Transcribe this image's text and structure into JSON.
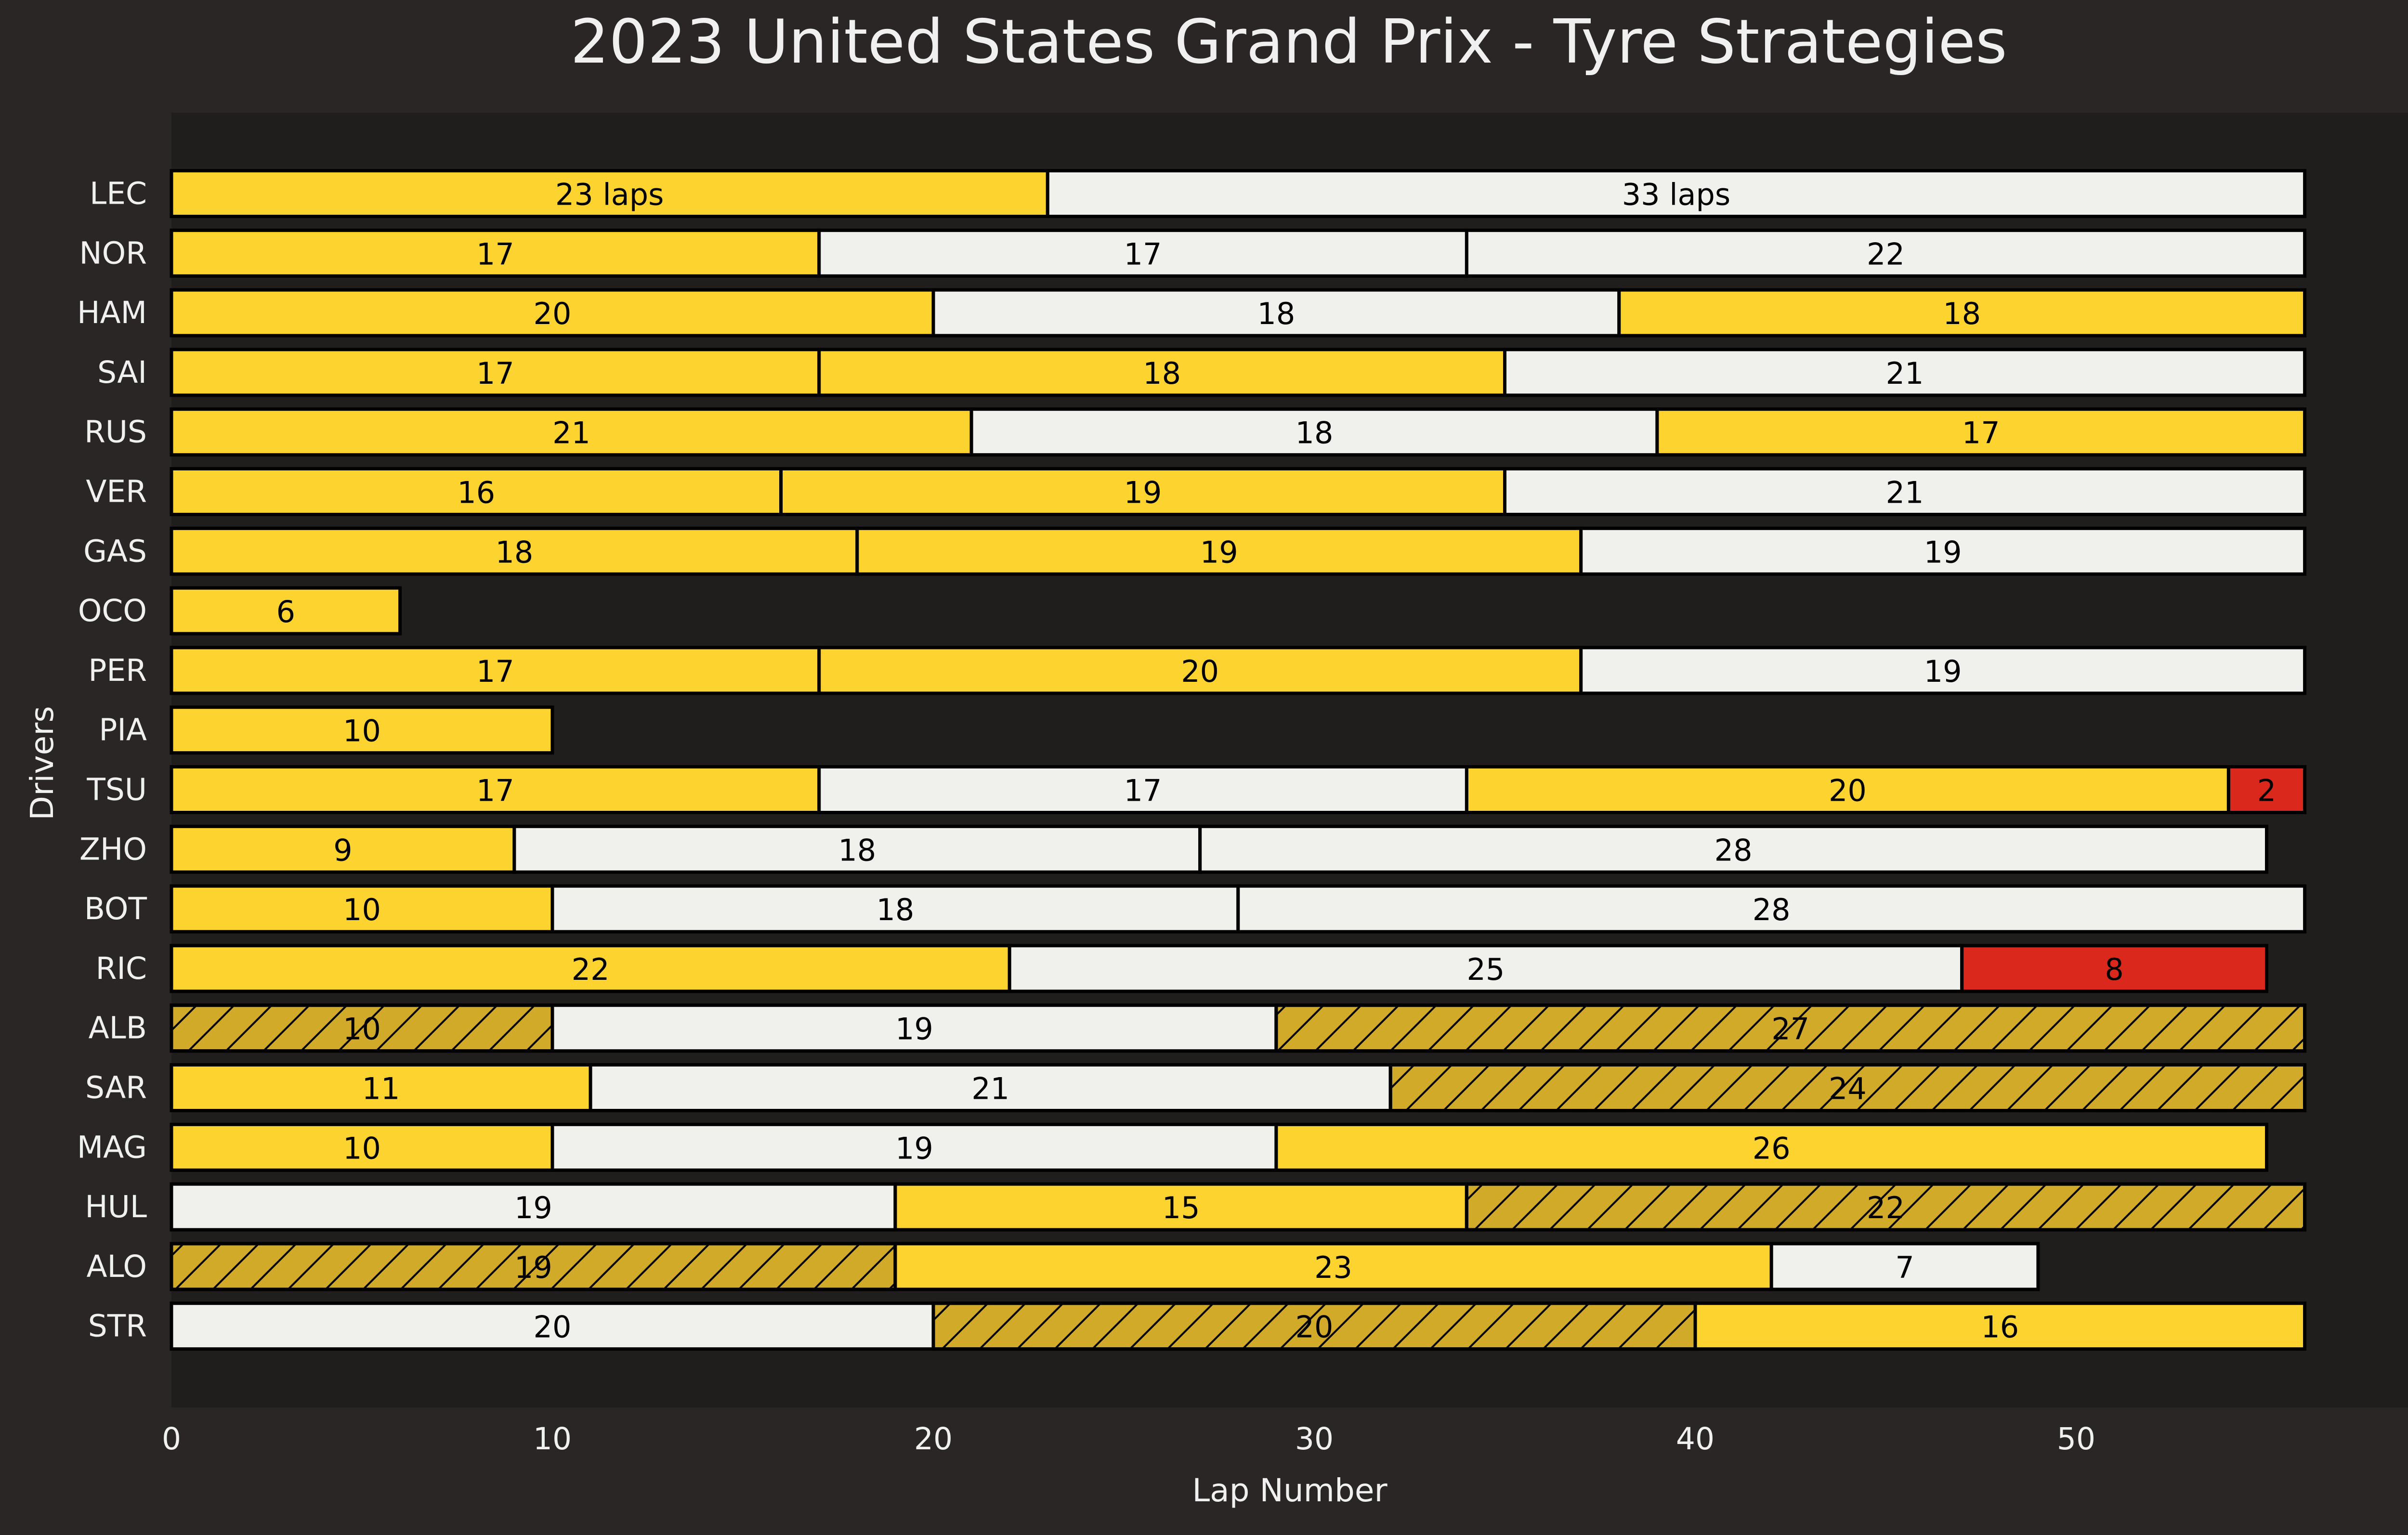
{
  "chart_data": {
    "type": "bar",
    "orientation": "horizontal-stacked",
    "title": "2023 United States Grand Prix - Tyre Strategies",
    "xlabel": "Lap Number",
    "ylabel": "Drivers",
    "xlim": [
      0,
      59
    ],
    "xticks": [
      0,
      10,
      20,
      30,
      40,
      50
    ],
    "grid": false,
    "legend": "none",
    "compound_colors": {
      "MEDIUM": "#FDD330",
      "HARD": "#F0F0EC",
      "SOFT": "#DA291C",
      "MEDIUM_USED": "#D1AA2A"
    },
    "colors": {
      "figure_bg": "#292625",
      "plot_bg": "#201E1D",
      "text": "#F0F0F0",
      "bar_edge": "#000000"
    },
    "drivers": [
      {
        "driver": "LEC",
        "stints": [
          {
            "laps": 23,
            "compound": "MEDIUM",
            "label": "23 laps"
          },
          {
            "laps": 33,
            "compound": "HARD",
            "label": "33 laps"
          }
        ]
      },
      {
        "driver": "NOR",
        "stints": [
          {
            "laps": 17,
            "compound": "MEDIUM",
            "label": "17"
          },
          {
            "laps": 17,
            "compound": "HARD",
            "label": "17"
          },
          {
            "laps": 22,
            "compound": "HARD",
            "label": "22"
          }
        ]
      },
      {
        "driver": "HAM",
        "stints": [
          {
            "laps": 20,
            "compound": "MEDIUM",
            "label": "20"
          },
          {
            "laps": 18,
            "compound": "HARD",
            "label": "18"
          },
          {
            "laps": 18,
            "compound": "MEDIUM",
            "label": "18"
          }
        ]
      },
      {
        "driver": "SAI",
        "stints": [
          {
            "laps": 17,
            "compound": "MEDIUM",
            "label": "17"
          },
          {
            "laps": 18,
            "compound": "MEDIUM",
            "label": "18"
          },
          {
            "laps": 21,
            "compound": "HARD",
            "label": "21"
          }
        ]
      },
      {
        "driver": "RUS",
        "stints": [
          {
            "laps": 21,
            "compound": "MEDIUM",
            "label": "21"
          },
          {
            "laps": 18,
            "compound": "HARD",
            "label": "18"
          },
          {
            "laps": 17,
            "compound": "MEDIUM",
            "label": "17"
          }
        ]
      },
      {
        "driver": "VER",
        "stints": [
          {
            "laps": 16,
            "compound": "MEDIUM",
            "label": "16"
          },
          {
            "laps": 19,
            "compound": "MEDIUM",
            "label": "19"
          },
          {
            "laps": 21,
            "compound": "HARD",
            "label": "21"
          }
        ]
      },
      {
        "driver": "GAS",
        "stints": [
          {
            "laps": 18,
            "compound": "MEDIUM",
            "label": "18"
          },
          {
            "laps": 19,
            "compound": "MEDIUM",
            "label": "19"
          },
          {
            "laps": 19,
            "compound": "HARD",
            "label": "19"
          }
        ]
      },
      {
        "driver": "OCO",
        "stints": [
          {
            "laps": 6,
            "compound": "MEDIUM",
            "label": "6"
          }
        ]
      },
      {
        "driver": "PER",
        "stints": [
          {
            "laps": 17,
            "compound": "MEDIUM",
            "label": "17"
          },
          {
            "laps": 20,
            "compound": "MEDIUM",
            "label": "20"
          },
          {
            "laps": 19,
            "compound": "HARD",
            "label": "19"
          }
        ]
      },
      {
        "driver": "PIA",
        "stints": [
          {
            "laps": 10,
            "compound": "MEDIUM",
            "label": "10"
          }
        ]
      },
      {
        "driver": "TSU",
        "stints": [
          {
            "laps": 17,
            "compound": "MEDIUM",
            "label": "17"
          },
          {
            "laps": 17,
            "compound": "HARD",
            "label": "17"
          },
          {
            "laps": 20,
            "compound": "MEDIUM",
            "label": "20"
          },
          {
            "laps": 2,
            "compound": "SOFT",
            "label": "2"
          }
        ]
      },
      {
        "driver": "ZHO",
        "stints": [
          {
            "laps": 9,
            "compound": "MEDIUM",
            "label": "9"
          },
          {
            "laps": 18,
            "compound": "HARD",
            "label": "18"
          },
          {
            "laps": 28,
            "compound": "HARD",
            "label": "28"
          }
        ]
      },
      {
        "driver": "BOT",
        "stints": [
          {
            "laps": 10,
            "compound": "MEDIUM",
            "label": "10"
          },
          {
            "laps": 18,
            "compound": "HARD",
            "label": "18"
          },
          {
            "laps": 28,
            "compound": "HARD",
            "label": "28"
          }
        ]
      },
      {
        "driver": "RIC",
        "stints": [
          {
            "laps": 22,
            "compound": "MEDIUM",
            "label": "22"
          },
          {
            "laps": 25,
            "compound": "HARD",
            "label": "25"
          },
          {
            "laps": 8,
            "compound": "SOFT",
            "label": "8"
          }
        ]
      },
      {
        "driver": "ALB",
        "stints": [
          {
            "laps": 10,
            "compound": "MEDIUM_USED",
            "label": "10"
          },
          {
            "laps": 19,
            "compound": "HARD",
            "label": "19"
          },
          {
            "laps": 27,
            "compound": "MEDIUM_USED",
            "label": "27"
          }
        ]
      },
      {
        "driver": "SAR",
        "stints": [
          {
            "laps": 11,
            "compound": "MEDIUM",
            "label": "11"
          },
          {
            "laps": 21,
            "compound": "HARD",
            "label": "21"
          },
          {
            "laps": 24,
            "compound": "MEDIUM_USED",
            "label": "24"
          }
        ]
      },
      {
        "driver": "MAG",
        "stints": [
          {
            "laps": 10,
            "compound": "MEDIUM",
            "label": "10"
          },
          {
            "laps": 19,
            "compound": "HARD",
            "label": "19"
          },
          {
            "laps": 26,
            "compound": "MEDIUM",
            "label": "26"
          }
        ]
      },
      {
        "driver": "HUL",
        "stints": [
          {
            "laps": 19,
            "compound": "HARD",
            "label": "19"
          },
          {
            "laps": 15,
            "compound": "MEDIUM",
            "label": "15"
          },
          {
            "laps": 22,
            "compound": "MEDIUM_USED",
            "label": "22"
          }
        ]
      },
      {
        "driver": "ALO",
        "stints": [
          {
            "laps": 19,
            "compound": "MEDIUM_USED",
            "label": "19"
          },
          {
            "laps": 23,
            "compound": "MEDIUM",
            "label": "23"
          },
          {
            "laps": 7,
            "compound": "HARD",
            "label": "7"
          }
        ]
      },
      {
        "driver": "STR",
        "stints": [
          {
            "laps": 20,
            "compound": "HARD",
            "label": "20"
          },
          {
            "laps": 20,
            "compound": "MEDIUM_USED",
            "label": "20"
          },
          {
            "laps": 16,
            "compound": "MEDIUM",
            "label": "16"
          }
        ]
      }
    ]
  }
}
